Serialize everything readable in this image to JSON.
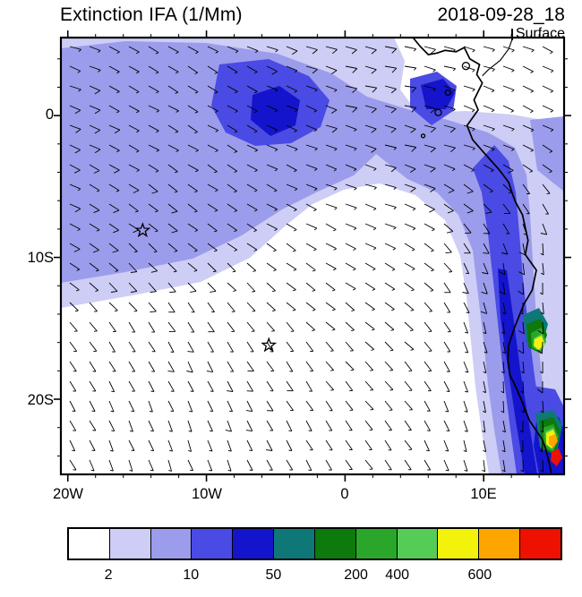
{
  "header": {
    "title": "Extinction IFA (1/Mm)",
    "datetime": "2018-09-28_18",
    "level": "Surface"
  },
  "chart_data": {
    "type": "filled_contour_map",
    "field": "Extinction IFA",
    "units": "1/Mm",
    "datetime": "2018-09-28_18",
    "level": "Surface",
    "geo": {
      "lon_min": -20.5,
      "lon_max": 15.8,
      "lat_min": -25.3,
      "lat_max": 5.5
    },
    "x_ticks": [
      {
        "value": -20,
        "label": "20W"
      },
      {
        "value": -10,
        "label": "10W"
      },
      {
        "value": 0,
        "label": "0"
      },
      {
        "value": 10,
        "label": "10E"
      }
    ],
    "y_ticks": [
      {
        "value": 0,
        "label": "0"
      },
      {
        "value": -10,
        "label": "10S"
      },
      {
        "value": -20,
        "label": "20S"
      }
    ],
    "colorbar": {
      "colors": [
        "#FFFFFF",
        "#CDCDF6",
        "#9C9CEC",
        "#4A4AE4",
        "#1414CC",
        "#0E7878",
        "#0C7A0C",
        "#2AA62A",
        "#55CC55",
        "#F2F20A",
        "#FFA500",
        "#EE1100"
      ],
      "labels": [
        {
          "text": "2",
          "boundary": 1
        },
        {
          "text": "10",
          "boundary": 3
        },
        {
          "text": "50",
          "boundary": 5
        },
        {
          "text": "200",
          "boundary": 7
        },
        {
          "text": "400",
          "boundary": 8
        },
        {
          "text": "600",
          "boundary": 10
        }
      ]
    },
    "markers": [
      {
        "shape": "star",
        "lon": -14.6,
        "lat": -8.1
      },
      {
        "shape": "star",
        "lon": -5.5,
        "lat": -16.2
      }
    ],
    "coastline": [
      [
        4.9,
        5.5
      ],
      [
        5.4,
        4.9
      ],
      [
        6.0,
        4.3
      ],
      [
        6.6,
        4.4
      ],
      [
        7.2,
        4.6
      ],
      [
        8.0,
        4.5
      ],
      [
        8.6,
        4.8
      ],
      [
        9.0,
        4.0
      ],
      [
        9.7,
        3.6
      ],
      [
        9.5,
        2.9
      ],
      [
        9.9,
        2.3
      ],
      [
        9.3,
        1.1
      ],
      [
        9.6,
        0.4
      ],
      [
        8.8,
        -0.7
      ],
      [
        9.2,
        -1.7
      ],
      [
        10.0,
        -2.6
      ],
      [
        11.1,
        -3.8
      ],
      [
        11.8,
        -4.7
      ],
      [
        12.1,
        -5.6
      ],
      [
        12.3,
        -6.1
      ],
      [
        12.8,
        -7.0
      ],
      [
        13.2,
        -8.8
      ],
      [
        13.0,
        -9.8
      ],
      [
        13.8,
        -10.9
      ],
      [
        13.5,
        -12.3
      ],
      [
        12.9,
        -13.3
      ],
      [
        12.2,
        -15.0
      ],
      [
        11.8,
        -16.2
      ],
      [
        11.75,
        -17.2
      ],
      [
        11.9,
        -18.3
      ],
      [
        12.4,
        -19.3
      ],
      [
        12.9,
        -20.5
      ],
      [
        13.3,
        -21.5
      ],
      [
        14.2,
        -22.8
      ],
      [
        14.45,
        -23.4
      ],
      [
        14.7,
        -24.4
      ],
      [
        14.9,
        -25.3
      ]
    ],
    "country_border": [
      [
        12.1,
        5.5
      ],
      [
        11.8,
        4.7
      ],
      [
        11.2,
        3.9
      ],
      [
        10.3,
        3.2
      ],
      [
        9.9,
        2.8
      ]
    ],
    "islands": [
      {
        "lon": 8.72,
        "lat": 3.5,
        "r": 4
      },
      {
        "lon": 7.42,
        "lat": 1.62,
        "r": 3
      },
      {
        "lon": 6.72,
        "lat": 0.22,
        "r": 3.6
      },
      {
        "lon": 5.63,
        "lat": -1.43,
        "r": 2
      }
    ],
    "contour_regions": [
      {
        "level": "2-5",
        "color_index": 1,
        "pts": [
          [
            68,
            42
          ],
          [
            440,
            42
          ],
          [
            452,
            68
          ],
          [
            447,
            100
          ],
          [
            466,
            126
          ],
          [
            520,
            124
          ],
          [
            572,
            128
          ],
          [
            630,
            138
          ],
          [
            630,
            530
          ],
          [
            546,
            530
          ],
          [
            538,
            482
          ],
          [
            531,
            432
          ],
          [
            526,
            382
          ],
          [
            521,
            332
          ],
          [
            514,
            286
          ],
          [
            497,
            246
          ],
          [
            464,
            218
          ],
          [
            424,
            205
          ],
          [
            384,
            212
          ],
          [
            349,
            228
          ],
          [
            319,
            252
          ],
          [
            279,
            288
          ],
          [
            224,
            315
          ],
          [
            148,
            330
          ],
          [
            68,
            344
          ]
        ]
      },
      {
        "level": "5-10",
        "color_index": 2,
        "pts": [
          [
            68,
            54
          ],
          [
            140,
            46
          ],
          [
            230,
            48
          ],
          [
            310,
            60
          ],
          [
            370,
            82
          ],
          [
            410,
            108
          ],
          [
            455,
            122
          ],
          [
            500,
            134
          ],
          [
            545,
            148
          ],
          [
            575,
            165
          ],
          [
            588,
            195
          ],
          [
            592,
            240
          ],
          [
            595,
            290
          ],
          [
            598,
            340
          ],
          [
            602,
            390
          ],
          [
            607,
            440
          ],
          [
            613,
            490
          ],
          [
            617,
            530
          ],
          [
            560,
            530
          ],
          [
            552,
            480
          ],
          [
            545,
            430
          ],
          [
            540,
            380
          ],
          [
            534,
            330
          ],
          [
            528,
            280
          ],
          [
            512,
            240
          ],
          [
            488,
            215
          ],
          [
            455,
            200
          ],
          [
            420,
            172
          ],
          [
            395,
            196
          ],
          [
            355,
            214
          ],
          [
            315,
            234
          ],
          [
            270,
            263
          ],
          [
            215,
            289
          ],
          [
            140,
            304
          ],
          [
            68,
            316
          ]
        ]
      },
      {
        "level": "5-10",
        "color_index": 2,
        "pts": [
          [
            592,
            134
          ],
          [
            630,
            130
          ],
          [
            630,
            214
          ],
          [
            600,
            190
          ]
        ]
      },
      {
        "level": "10-20",
        "color_index": 3,
        "pts": [
          [
            245,
            72
          ],
          [
            300,
            66
          ],
          [
            345,
            85
          ],
          [
            368,
            112
          ],
          [
            358,
            142
          ],
          [
            325,
            160
          ],
          [
            285,
            163
          ],
          [
            252,
            148
          ],
          [
            236,
            118
          ]
        ]
      },
      {
        "level": "10-20",
        "color_index": 3,
        "pts": [
          [
            552,
            162
          ],
          [
            568,
            180
          ],
          [
            576,
            215
          ],
          [
            580,
            260
          ],
          [
            584,
            310
          ],
          [
            590,
            365
          ],
          [
            597,
            420
          ],
          [
            605,
            475
          ],
          [
            614,
            530
          ],
          [
            577,
            530
          ],
          [
            570,
            480
          ],
          [
            563,
            425
          ],
          [
            557,
            370
          ],
          [
            551,
            315
          ],
          [
            545,
            262
          ],
          [
            538,
            215
          ],
          [
            528,
            188
          ]
        ]
      },
      {
        "level": "10-20",
        "color_index": 3,
        "pts": [
          [
            458,
            88
          ],
          [
            488,
            80
          ],
          [
            510,
            96
          ],
          [
            506,
            124
          ],
          [
            482,
            140
          ],
          [
            458,
            120
          ]
        ]
      },
      {
        "level": "10-20",
        "color_index": 3,
        "pts": [
          [
            588,
            430
          ],
          [
            620,
            435
          ],
          [
            630,
            455
          ],
          [
            630,
            530
          ],
          [
            612,
            530
          ],
          [
            592,
            480
          ]
        ]
      },
      {
        "level": "20-50",
        "color_index": 4,
        "pts": [
          [
            282,
            106
          ],
          [
            312,
            96
          ],
          [
            335,
            112
          ],
          [
            330,
            140
          ],
          [
            302,
            152
          ],
          [
            280,
            134
          ]
        ]
      },
      {
        "level": "20-50",
        "color_index": 4,
        "pts": [
          [
            556,
            300
          ],
          [
            566,
            302
          ],
          [
            574,
            360
          ],
          [
            582,
            420
          ],
          [
            592,
            480
          ],
          [
            600,
            530
          ],
          [
            586,
            530
          ],
          [
            576,
            470
          ],
          [
            567,
            410
          ],
          [
            559,
            355
          ]
        ]
      },
      {
        "level": "20-50",
        "color_index": 4,
        "pts": [
          [
            470,
            95
          ],
          [
            495,
            88
          ],
          [
            508,
            104
          ],
          [
            498,
            122
          ],
          [
            476,
            122
          ]
        ]
      },
      {
        "level": "20-50",
        "color_index": 4,
        "pts": [
          [
            600,
            462
          ],
          [
            624,
            466
          ],
          [
            630,
            480
          ],
          [
            630,
            530
          ],
          [
            602,
            530
          ],
          [
            596,
            498
          ]
        ]
      },
      {
        "level": "50-100",
        "color_index": 5,
        "pts": [
          [
            584,
            352
          ],
          [
            602,
            344
          ],
          [
            612,
            362
          ],
          [
            605,
            388
          ],
          [
            588,
            382
          ]
        ]
      },
      {
        "level": "50-100",
        "color_index": 5,
        "pts": [
          [
            598,
            462
          ],
          [
            618,
            458
          ],
          [
            628,
            475
          ],
          [
            622,
            505
          ],
          [
            603,
            500
          ]
        ]
      },
      {
        "level": "100-200",
        "color_index": 6,
        "pts": [
          [
            588,
            362
          ],
          [
            604,
            356
          ],
          [
            611,
            374
          ],
          [
            604,
            395
          ],
          [
            590,
            388
          ]
        ]
      },
      {
        "level": "100-200",
        "color_index": 6,
        "pts": [
          [
            602,
            470
          ],
          [
            618,
            466
          ],
          [
            626,
            482
          ],
          [
            620,
            508
          ],
          [
            606,
            502
          ]
        ]
      },
      {
        "level": "200-400",
        "color_index": 7,
        "pts": [
          [
            593,
            372
          ],
          [
            605,
            366
          ],
          [
            610,
            382
          ],
          [
            603,
            394
          ],
          [
            594,
            388
          ]
        ]
      },
      {
        "level": "200-400",
        "color_index": 7,
        "pts": [
          [
            606,
            478
          ],
          [
            618,
            474
          ],
          [
            624,
            488
          ],
          [
            618,
            505
          ],
          [
            608,
            500
          ]
        ]
      },
      {
        "level": "400-500",
        "color_index": 8,
        "pts": [
          [
            596,
            378
          ],
          [
            605,
            373
          ],
          [
            609,
            384
          ],
          [
            603,
            392
          ],
          [
            596,
            387
          ]
        ]
      },
      {
        "level": "400-500",
        "color_index": 8,
        "pts": [
          [
            609,
            482
          ],
          [
            618,
            478
          ],
          [
            622,
            489
          ],
          [
            617,
            502
          ],
          [
            610,
            497
          ]
        ]
      },
      {
        "level": "500-600",
        "color_index": 9,
        "pts": [
          [
            597,
            379
          ],
          [
            605,
            375
          ],
          [
            608,
            385
          ],
          [
            601,
            391
          ],
          [
            596,
            386
          ]
        ]
      },
      {
        "level": "500-600",
        "color_index": 9,
        "pts": [
          [
            610,
            484
          ],
          [
            618,
            480
          ],
          [
            622,
            490
          ],
          [
            616,
            501
          ],
          [
            610,
            496
          ]
        ]
      },
      {
        "level": "600-700",
        "color_index": 10,
        "pts": [
          [
            613,
            488
          ],
          [
            620,
            485
          ],
          [
            623,
            493
          ],
          [
            618,
            500
          ],
          [
            613,
            496
          ]
        ]
      },
      {
        "level": "700+",
        "color_index": 11,
        "pts": [
          [
            616,
            505
          ],
          [
            624,
            501
          ],
          [
            628,
            511
          ],
          [
            622,
            521
          ],
          [
            615,
            515
          ]
        ]
      }
    ],
    "wind_barbs": {
      "grid_spacing_px": 22,
      "dir_from_deg_south": 152,
      "dir_from_deg_north": 104,
      "speed_range_kt": [
        3,
        13
      ]
    }
  }
}
